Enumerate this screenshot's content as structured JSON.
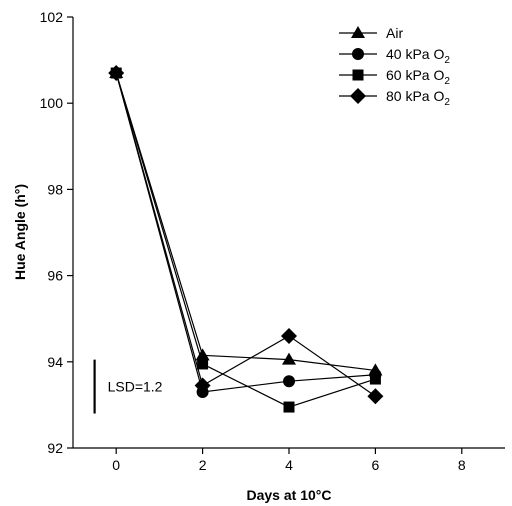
{
  "chart_data": {
    "type": "line",
    "title": "",
    "xlabel": "Days at 10°C",
    "ylabel": "Hue Angle (h°)",
    "xlim": [
      -1,
      9
    ],
    "ylim": [
      92,
      102
    ],
    "xticks": [
      "0",
      "2",
      "4",
      "6",
      "8"
    ],
    "yticks": [
      "92",
      "94",
      "96",
      "98",
      "100",
      "102"
    ],
    "grid": false,
    "legend_position": "top-right",
    "series": [
      {
        "name": "Air",
        "marker": "triangle",
        "x": [
          0,
          2,
          4,
          6
        ],
        "y": [
          100.7,
          94.15,
          94.05,
          93.8
        ]
      },
      {
        "name": "40 kPa O2",
        "marker": "circle",
        "x": [
          0,
          2,
          4,
          6
        ],
        "y": [
          100.7,
          93.3,
          93.55,
          93.7
        ]
      },
      {
        "name": "60 kPa O2",
        "marker": "square",
        "x": [
          0,
          2,
          4,
          6
        ],
        "y": [
          100.7,
          93.95,
          92.95,
          93.6
        ]
      },
      {
        "name": "80 kPa O2",
        "marker": "diamond",
        "x": [
          0,
          2,
          4,
          6
        ],
        "y": [
          100.7,
          93.45,
          94.6,
          93.2
        ]
      }
    ],
    "annotation": {
      "text": "LSD=1.2",
      "x": -0.5,
      "y_low": 92.8,
      "y_high": 94.05
    }
  }
}
